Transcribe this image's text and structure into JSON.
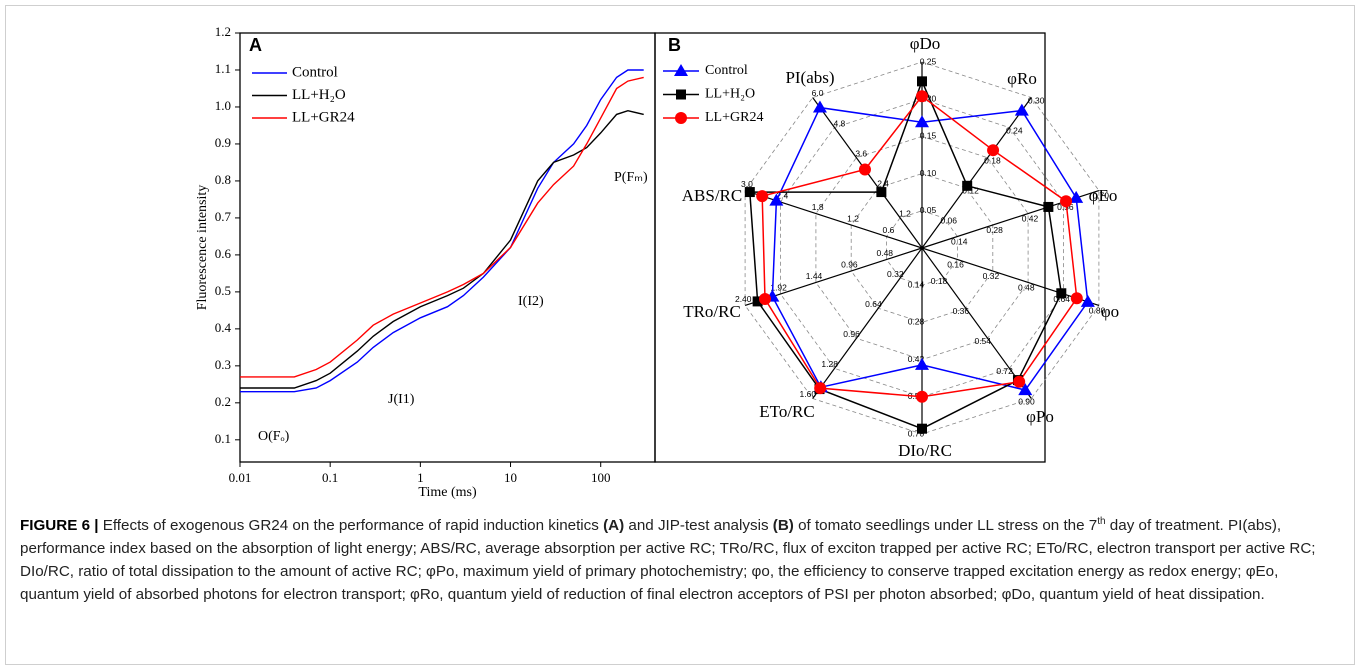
{
  "chart_data": [
    {
      "type": "line",
      "panel_label": "A",
      "xlabel": "Time (ms)",
      "ylabel": "Fluorescence intensity",
      "xscale": "log",
      "xlim": [
        0.01,
        400
      ],
      "xticks": [
        0.01,
        0.1,
        1,
        10,
        100
      ],
      "ylim": [
        0.04,
        1.2
      ],
      "yticks": [
        0.1,
        0.2,
        0.3,
        0.4,
        0.5,
        0.6,
        0.7,
        0.8,
        0.9,
        {
          "value": 1,
          "label": "1.0"
        },
        1.1,
        1.2
      ],
      "x": [
        0.01,
        0.04,
        0.07,
        0.1,
        0.2,
        0.3,
        0.5,
        1,
        2,
        3,
        5,
        10,
        20,
        30,
        50,
        70,
        100,
        150,
        200,
        300
      ],
      "series": [
        {
          "name": "Control",
          "color": "#0000ff",
          "values": [
            0.23,
            0.23,
            0.24,
            0.26,
            0.31,
            0.35,
            0.39,
            0.43,
            0.46,
            0.49,
            0.54,
            0.62,
            0.78,
            0.85,
            0.9,
            0.95,
            1.02,
            1.08,
            1.1,
            1.1
          ]
        },
        {
          "name": "LL+H₂O",
          "color": "#000000",
          "values": [
            0.24,
            0.24,
            0.26,
            0.28,
            0.34,
            0.38,
            0.42,
            0.46,
            0.49,
            0.51,
            0.55,
            0.64,
            0.8,
            0.85,
            0.87,
            0.89,
            0.93,
            0.98,
            0.99,
            0.98
          ]
        },
        {
          "name": "LL+GR24",
          "color": "#ff0000",
          "values": [
            0.27,
            0.27,
            0.29,
            0.31,
            0.37,
            0.41,
            0.44,
            0.47,
            0.5,
            0.52,
            0.55,
            0.62,
            0.74,
            0.79,
            0.84,
            0.9,
            0.97,
            1.05,
            1.07,
            1.08
          ]
        }
      ],
      "annotations": [
        "O(Fₒ)",
        "J(I1)",
        "I(I2)",
        "P(Fₘ)"
      ]
    },
    {
      "type": "radar",
      "panel_label": "B",
      "axes": [
        {
          "name": "φDo",
          "lim": [
            0,
            0.25
          ],
          "ticks": [
            0.05,
            {
              "value": 0.1,
              "label": "0.10"
            },
            0.15,
            {
              "value": 0.2,
              "label": "0.20"
            },
            0.25
          ]
        },
        {
          "name": "φRo",
          "lim": [
            0,
            0.3
          ],
          "ticks": [
            0.06,
            0.12,
            0.18,
            0.24,
            {
              "value": 0.3,
              "label": "0.30"
            }
          ]
        },
        {
          "name": "φEo",
          "lim": [
            0,
            0.7
          ],
          "ticks": [
            0.14,
            0.28,
            0.42,
            0.56,
            {
              "value": 0.7,
              "label": "0.70"
            }
          ]
        },
        {
          "name": "φo",
          "lim": [
            0,
            0.8
          ],
          "ticks": [
            0.16,
            0.32,
            0.48,
            0.64,
            {
              "value": 0.8,
              "label": "0.80"
            }
          ]
        },
        {
          "name": "φPo",
          "lim": [
            0,
            0.9
          ],
          "ticks": [
            0.18,
            0.36,
            0.54,
            0.72,
            {
              "value": 0.9,
              "label": "0.90"
            }
          ]
        },
        {
          "name": "DIo/RC",
          "lim": [
            0,
            0.7
          ],
          "ticks": [
            0.14,
            0.28,
            0.42,
            0.56,
            {
              "value": 0.7,
              "label": "0.70"
            }
          ]
        },
        {
          "name": "ETo/RC",
          "lim": [
            0,
            1.6
          ],
          "ticks": [
            0.32,
            0.64,
            0.96,
            1.28,
            {
              "value": 1.6,
              "label": "1.60"
            }
          ]
        },
        {
          "name": "TRo/RC",
          "lim": [
            0,
            2.4
          ],
          "ticks": [
            0.48,
            0.96,
            1.44,
            1.92,
            {
              "value": 2.4,
              "label": "2.40"
            }
          ]
        },
        {
          "name": "ABS/RC",
          "lim": [
            0,
            3
          ],
          "ticks": [
            0.6,
            1.2,
            1.8,
            2.4,
            {
              "value": 3,
              "label": "3.0"
            }
          ]
        },
        {
          "name": "PI(abs)",
          "lim": [
            0,
            6
          ],
          "ticks": [
            1.2,
            2.4,
            3.6,
            4.8,
            {
              "value": 6,
              "label": "6.0"
            }
          ]
        }
      ],
      "series": [
        {
          "name": "Control",
          "color": "#0000ff",
          "marker": "triangle",
          "values": [
            0.169,
            0.274,
            0.61,
            0.75,
            0.85,
            0.44,
            1.48,
            2.03,
            2.47,
            5.6
          ]
        },
        {
          "name": "LL+H₂O",
          "color": "#000000",
          "marker": "square",
          "values": [
            0.224,
            0.124,
            0.5,
            0.63,
            0.79,
            0.68,
            1.5,
            2.23,
            2.92,
            2.23
          ]
        },
        {
          "name": "LL+GR24",
          "color": "#ff0000",
          "marker": "circle",
          "values": [
            0.204,
            0.195,
            0.57,
            0.7,
            0.8,
            0.56,
            1.49,
            2.13,
            2.71,
            3.13
          ]
        }
      ]
    }
  ],
  "caption": {
    "label": "FIGURE 6 |",
    "segments": [
      {
        "style": "normal",
        "text": " Effects of exogenous GR24 on the performance of rapid induction kinetics "
      },
      {
        "style": "bold",
        "text": "(A)"
      },
      {
        "style": "normal",
        "text": " and JIP-test analysis "
      },
      {
        "style": "bold",
        "text": "(B)"
      },
      {
        "style": "normal",
        "text": " of tomato seedlings under LL stress on the 7"
      },
      {
        "style": "sup",
        "text": "th"
      },
      {
        "style": "normal",
        "text": " day of treatment. PI(abs), performance index based on the absorption of light energy; ABS/RC, average absorption per active RC; TRo/RC, flux of exciton trapped per active RC; ETo/RC, electron transport per active RC; DIo/RC, ratio of total dissipation to the amount of active RC; φPo, maximum yield of primary photochemistry; φo, the efficiency to conserve trapped excitation energy as redox energy; φEo, quantum yield of absorbed photons for electron transport; φRo, quantum yield of reduction of final electron acceptors of PSI per photon absorbed; φDo, quantum yield of heat dissipation."
      }
    ]
  }
}
